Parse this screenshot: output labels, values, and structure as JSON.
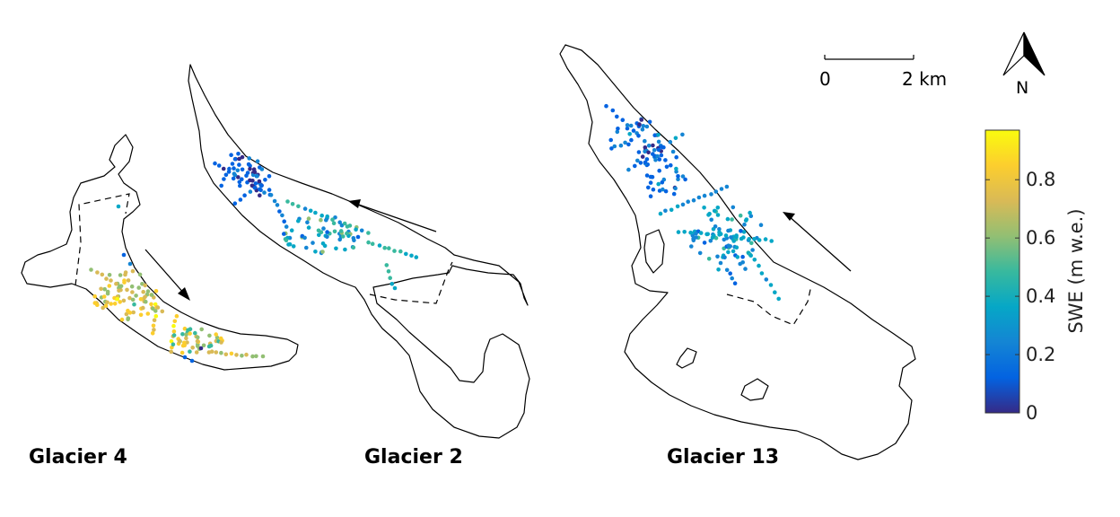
{
  "glaciers": [
    {
      "label": "Glacier 4"
    },
    {
      "label": "Glacier 2"
    },
    {
      "label": "Glacier 13"
    }
  ],
  "scale_bar": {
    "start_label": "0",
    "end_label": "2 km"
  },
  "north_arrow": {
    "label": "N",
    "icon": "north-arrow-icon"
  },
  "colorbar": {
    "title": "SWE (m w.e.)",
    "ticks": [
      "0",
      "0.2",
      "0.4",
      "0.6",
      "0.8"
    ],
    "min": 0,
    "max": 0.97,
    "colormap": [
      "#352a87",
      "#0363e1",
      "#1485d4",
      "#06a7c6",
      "#38b99e",
      "#92bf73",
      "#d9ba56",
      "#fcce2e",
      "#f9fb0e"
    ]
  },
  "map_legend": {
    "solid_line": "glacier outline",
    "dashed_line": "accumulation area"
  }
}
